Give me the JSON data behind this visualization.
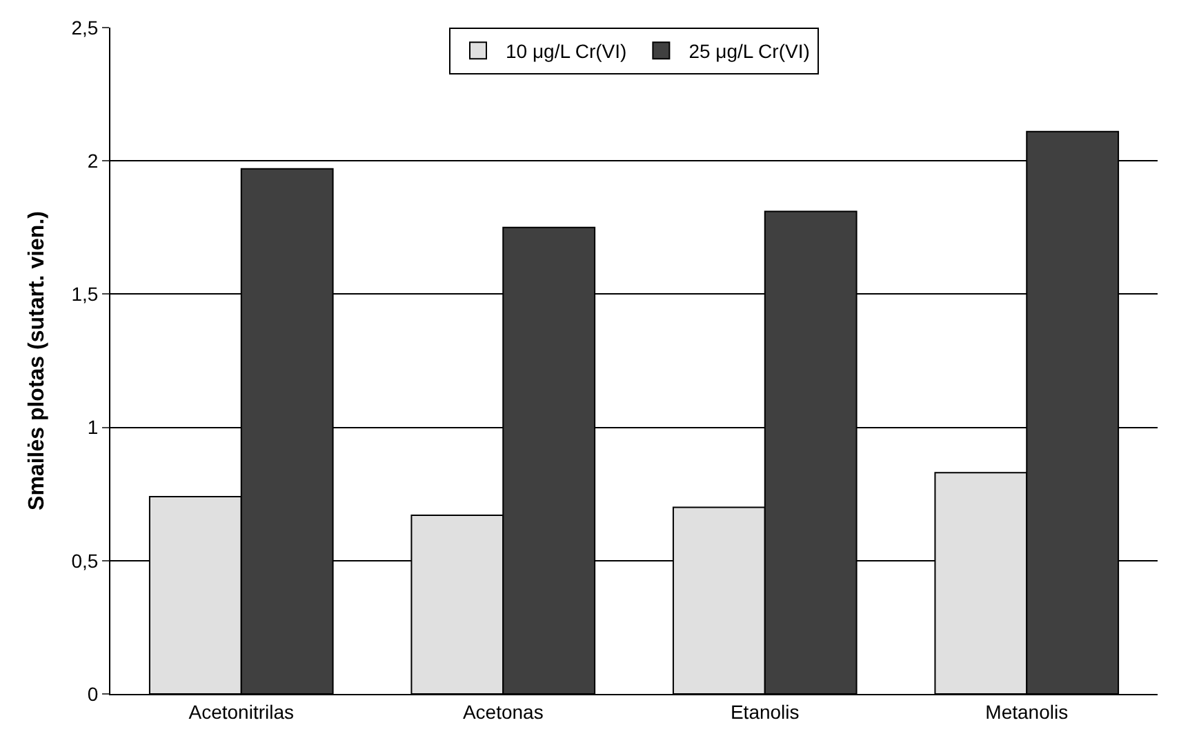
{
  "chart_data": {
    "type": "bar",
    "ylabel": "Smailės plotas (sutart. vien.)",
    "categories": [
      "Acetonitrilas",
      "Acetonas",
      "Etanolis",
      "Metanolis"
    ],
    "series": [
      {
        "name": "10 μg/L Cr(VI)",
        "color": "#e0e0e0",
        "values": [
          0.74,
          0.67,
          0.7,
          0.83
        ]
      },
      {
        "name": "25 μg/L Cr(VI)",
        "color": "#404040",
        "values": [
          1.97,
          1.75,
          1.81,
          2.11
        ]
      }
    ],
    "ylim": [
      0,
      2.5
    ],
    "yticks": [
      0,
      {
        "value": 0.5,
        "label": "0,5"
      },
      1,
      {
        "value": 1.5,
        "label": "1,5"
      },
      2,
      {
        "value": 2.5,
        "label": "2,5"
      }
    ],
    "grid": "y",
    "legend": "top"
  }
}
